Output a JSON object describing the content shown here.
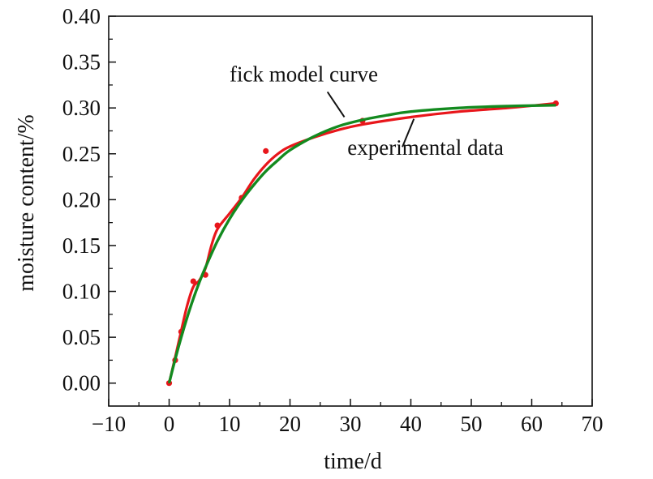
{
  "chart_data": {
    "type": "line",
    "xlabel": "time/d",
    "ylabel": "moisture content/%",
    "xlim": [
      -10,
      70
    ],
    "ylim": [
      -0.025,
      0.4
    ],
    "x_ticks": [
      -10,
      0,
      10,
      20,
      30,
      40,
      50,
      60,
      70
    ],
    "x_tick_labels": [
      "−10",
      "0",
      "10",
      "20",
      "30",
      "40",
      "50",
      "60",
      "70"
    ],
    "y_ticks": [
      0.0,
      0.05,
      0.1,
      0.15,
      0.2,
      0.25,
      0.3,
      0.35,
      0.4
    ],
    "y_tick_labels": [
      "0.00",
      "0.05",
      "0.10",
      "0.15",
      "0.20",
      "0.25",
      "0.30",
      "0.35",
      "0.40"
    ],
    "grid": false,
    "legend": "none",
    "series": [
      {
        "name": "experimental data",
        "color": "#e8161b",
        "points_x": [
          0,
          1,
          2,
          4,
          6,
          8,
          12,
          16,
          32,
          64
        ],
        "points_y": [
          0.0,
          0.025,
          0.056,
          0.111,
          0.118,
          0.172,
          0.202,
          0.253,
          0.286,
          0.305
        ],
        "curve_x": [
          0,
          1,
          2,
          3,
          4,
          5,
          6,
          7,
          8,
          10,
          12,
          14,
          16,
          18,
          20,
          24,
          28,
          32,
          40,
          48,
          56,
          64
        ],
        "curve_y": [
          0.0,
          0.028,
          0.057,
          0.085,
          0.105,
          0.112,
          0.125,
          0.15,
          0.168,
          0.185,
          0.202,
          0.222,
          0.238,
          0.25,
          0.258,
          0.268,
          0.276,
          0.282,
          0.29,
          0.296,
          0.3,
          0.305
        ]
      },
      {
        "name": "fick model curve",
        "color": "#138a1f",
        "curve_x": [
          0,
          1,
          2,
          3,
          4,
          5,
          6,
          8,
          10,
          12,
          14,
          16,
          18,
          20,
          24,
          28,
          32,
          36,
          40,
          48,
          56,
          64
        ],
        "curve_y": [
          0.0,
          0.026,
          0.05,
          0.072,
          0.092,
          0.11,
          0.126,
          0.155,
          0.179,
          0.199,
          0.216,
          0.231,
          0.243,
          0.254,
          0.269,
          0.28,
          0.287,
          0.292,
          0.296,
          0.3,
          0.302,
          0.303
        ]
      }
    ],
    "annotations": [
      {
        "text": "fick model curve",
        "target_series": "fick model curve",
        "text_x": 10.0,
        "text_y": 0.329,
        "arrow_from": [
          26.2,
          0.3175
        ],
        "arrow_to": [
          29.0,
          0.29
        ]
      },
      {
        "text": "experimental data",
        "target_series": "experimental data",
        "text_x": 29.5,
        "text_y": 0.249,
        "arrow_from": [
          38.6,
          0.2575
        ],
        "arrow_to": [
          40.5,
          0.288
        ]
      }
    ]
  }
}
